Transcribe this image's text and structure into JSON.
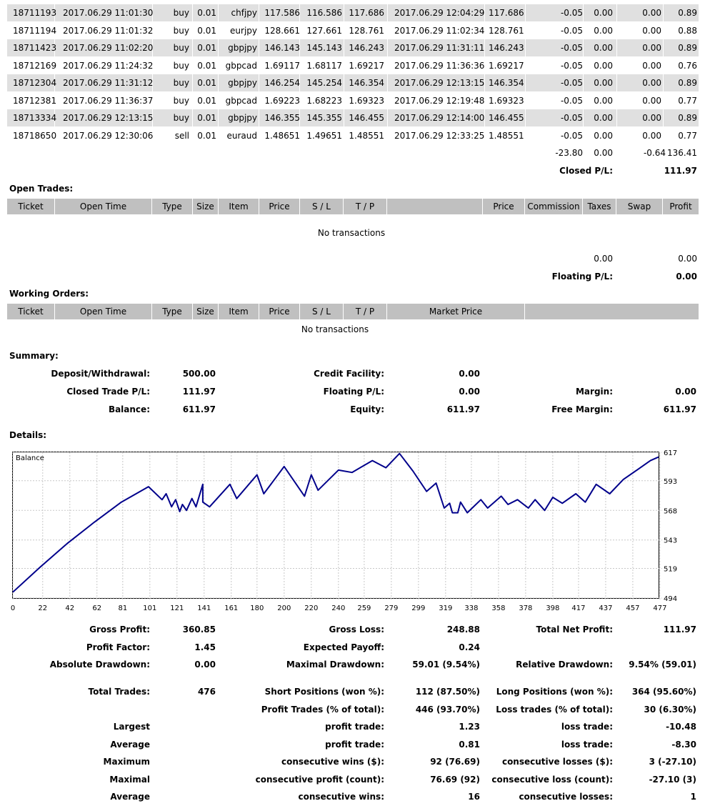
{
  "closed_trades": {
    "rows": [
      {
        "ticket": "18711193",
        "open_time": "2017.06.29 11:01:30",
        "type": "buy",
        "size": "0.01",
        "item": "chfjpy",
        "price": "117.586",
        "sl": "116.586",
        "tp": "117.686",
        "close_time": "2017.06.29 12:04:29",
        "close_price": "117.686",
        "commission": "-0.05",
        "taxes": "0.00",
        "swap": "0.00",
        "profit": "0.89"
      },
      {
        "ticket": "18711194",
        "open_time": "2017.06.29 11:01:32",
        "type": "buy",
        "size": "0.01",
        "item": "eurjpy",
        "price": "128.661",
        "sl": "127.661",
        "tp": "128.761",
        "close_time": "2017.06.29 11:02:34",
        "close_price": "128.761",
        "commission": "-0.05",
        "taxes": "0.00",
        "swap": "0.00",
        "profit": "0.88"
      },
      {
        "ticket": "18711423",
        "open_time": "2017.06.29 11:02:20",
        "type": "buy",
        "size": "0.01",
        "item": "gbpjpy",
        "price": "146.143",
        "sl": "145.143",
        "tp": "146.243",
        "close_time": "2017.06.29 11:31:11",
        "close_price": "146.243",
        "commission": "-0.05",
        "taxes": "0.00",
        "swap": "0.00",
        "profit": "0.89"
      },
      {
        "ticket": "18712169",
        "open_time": "2017.06.29 11:24:32",
        "type": "buy",
        "size": "0.01",
        "item": "gbpcad",
        "price": "1.69117",
        "sl": "1.68117",
        "tp": "1.69217",
        "close_time": "2017.06.29 11:36:36",
        "close_price": "1.69217",
        "commission": "-0.05",
        "taxes": "0.00",
        "swap": "0.00",
        "profit": "0.76"
      },
      {
        "ticket": "18712304",
        "open_time": "2017.06.29 11:31:12",
        "type": "buy",
        "size": "0.01",
        "item": "gbpjpy",
        "price": "146.254",
        "sl": "145.254",
        "tp": "146.354",
        "close_time": "2017.06.29 12:13:15",
        "close_price": "146.354",
        "commission": "-0.05",
        "taxes": "0.00",
        "swap": "0.00",
        "profit": "0.89"
      },
      {
        "ticket": "18712381",
        "open_time": "2017.06.29 11:36:37",
        "type": "buy",
        "size": "0.01",
        "item": "gbpcad",
        "price": "1.69223",
        "sl": "1.68223",
        "tp": "1.69323",
        "close_time": "2017.06.29 12:19:48",
        "close_price": "1.69323",
        "commission": "-0.05",
        "taxes": "0.00",
        "swap": "0.00",
        "profit": "0.77"
      },
      {
        "ticket": "18713334",
        "open_time": "2017.06.29 12:13:15",
        "type": "buy",
        "size": "0.01",
        "item": "gbpjpy",
        "price": "146.355",
        "sl": "145.355",
        "tp": "146.455",
        "close_time": "2017.06.29 12:14:00",
        "close_price": "146.455",
        "commission": "-0.05",
        "taxes": "0.00",
        "swap": "0.00",
        "profit": "0.89"
      },
      {
        "ticket": "18718650",
        "open_time": "2017.06.29 12:30:06",
        "type": "sell",
        "size": "0.01",
        "item": "euraud",
        "price": "1.48651",
        "sl": "1.49651",
        "tp": "1.48551",
        "close_time": "2017.06.29 12:33:25",
        "close_price": "1.48551",
        "commission": "-0.05",
        "taxes": "0.00",
        "swap": "0.00",
        "profit": "0.77"
      }
    ],
    "totals": {
      "commission": "-23.80",
      "taxes": "0.00",
      "swap": "-0.64",
      "profit": "136.41"
    },
    "pl_label": "Closed P/L:",
    "pl_value": "111.97"
  },
  "open_trades": {
    "title": "Open Trades:",
    "headers": {
      "ticket": "Ticket",
      "open_time": "Open Time",
      "type": "Type",
      "size": "Size",
      "item": "Item",
      "price": "Price",
      "sl": "S / L",
      "tp": "T / P",
      "price2": "Price",
      "commission": "Commission",
      "taxes": "Taxes",
      "swap": "Swap",
      "profit": "Profit"
    },
    "empty": "No transactions",
    "total_swap": "0.00",
    "total_profit": "0.00",
    "pl_label": "Floating P/L:",
    "pl_value": "0.00"
  },
  "working_orders": {
    "title": "Working Orders:",
    "headers": {
      "ticket": "Ticket",
      "open_time": "Open Time",
      "type": "Type",
      "size": "Size",
      "item": "Item",
      "price": "Price",
      "sl": "S / L",
      "tp": "T / P",
      "market_price": "Market Price"
    },
    "empty": "No transactions"
  },
  "summary": {
    "title": "Summary:",
    "deposit_label": "Deposit/Withdrawal:",
    "deposit": "500.00",
    "credit_label": "Credit Facility:",
    "credit": "0.00",
    "closed_pl_label": "Closed Trade P/L:",
    "closed_pl": "111.97",
    "floating_pl_label": "Floating P/L:",
    "floating_pl": "0.00",
    "margin_label": "Margin:",
    "margin": "0.00",
    "balance_label": "Balance:",
    "balance": "611.97",
    "equity_label": "Equity:",
    "equity": "611.97",
    "free_margin_label": "Free Margin:",
    "free_margin": "611.97"
  },
  "details": {
    "title": "Details:"
  },
  "chart_data": {
    "type": "line",
    "title": "Balance",
    "line_color": "#00008b",
    "x_ticks": [
      "0",
      "22",
      "42",
      "62",
      "81",
      "101",
      "121",
      "141",
      "161",
      "180",
      "200",
      "220",
      "240",
      "259",
      "279",
      "299",
      "319",
      "338",
      "358",
      "378",
      "398",
      "417",
      "437",
      "457",
      "477"
    ],
    "y_ticks": [
      "617",
      "593",
      "568",
      "543",
      "519",
      "494"
    ],
    "ylim": [
      494,
      617
    ],
    "xlim": [
      0,
      476
    ],
    "x": [
      0,
      20,
      40,
      60,
      80,
      100,
      110,
      113,
      117,
      120,
      123,
      125,
      128,
      132,
      135,
      140,
      140,
      145,
      160,
      165,
      180,
      185,
      200,
      215,
      220,
      225,
      240,
      250,
      265,
      275,
      285,
      295,
      305,
      312,
      318,
      322,
      324,
      328,
      330,
      335,
      345,
      350,
      360,
      365,
      372,
      380,
      385,
      392,
      398,
      405,
      415,
      422,
      430,
      440,
      450,
      460,
      470,
      476
    ],
    "y": [
      499,
      520,
      540,
      558,
      575,
      588,
      577,
      582,
      571,
      577,
      567,
      573,
      568,
      578,
      571,
      590,
      575,
      571,
      590,
      578,
      598,
      582,
      605,
      580,
      598,
      585,
      602,
      600,
      610,
      604,
      616,
      601,
      584,
      591,
      570,
      574,
      566,
      566,
      575,
      566,
      577,
      570,
      580,
      573,
      577,
      570,
      577,
      568,
      579,
      574,
      582,
      575,
      590,
      582,
      594,
      602,
      610,
      613
    ]
  },
  "stats": {
    "gross_profit_label": "Gross Profit:",
    "gross_profit": "360.85",
    "gross_loss_label": "Gross Loss:",
    "gross_loss": "248.88",
    "total_net_profit_label": "Total Net Profit:",
    "total_net_profit": "111.97",
    "profit_factor_label": "Profit Factor:",
    "profit_factor": "1.45",
    "expected_payoff_label": "Expected Payoff:",
    "expected_payoff": "0.24",
    "absolute_drawdown_label": "Absolute Drawdown:",
    "absolute_drawdown": "0.00",
    "maximal_drawdown_label": "Maximal Drawdown:",
    "maximal_drawdown": "59.01 (9.54%)",
    "relative_drawdown_label": "Relative Drawdown:",
    "relative_drawdown": "9.54% (59.01)",
    "total_trades_label": "Total Trades:",
    "total_trades": "476",
    "short_positions_label": "Short Positions (won %):",
    "short_positions": "112 (87.50%)",
    "long_positions_label": "Long Positions (won %):",
    "long_positions": "364 (95.60%)",
    "profit_trades_label": "Profit Trades (% of total):",
    "profit_trades": "446 (93.70%)",
    "loss_trades_label": "Loss trades (% of total):",
    "loss_trades": "30 (6.30%)",
    "largest_label": "Largest",
    "largest_profit_label": "profit trade:",
    "largest_profit": "1.23",
    "largest_loss_label": "loss trade:",
    "largest_loss": "-10.48",
    "average_label": "Average",
    "average_profit_label": "profit trade:",
    "average_profit": "0.81",
    "average_loss_label": "loss trade:",
    "average_loss": "-8.30",
    "maximum_label": "Maximum",
    "max_consec_wins_label": "consecutive wins ($):",
    "max_consec_wins": "92 (76.69)",
    "max_consec_losses_label": "consecutive losses ($):",
    "max_consec_losses": "3 (-27.10)",
    "maximal_label": "Maximal",
    "maximal_consec_profit_label": "consecutive profit (count):",
    "maximal_consec_profit": "76.69 (92)",
    "maximal_consec_loss_label": "consecutive loss (count):",
    "maximal_consec_loss": "-27.10 (3)",
    "average2_label": "Average",
    "avg_consec_wins_label": "consecutive wins:",
    "avg_consec_wins": "16",
    "avg_consec_losses_label": "consecutive losses:",
    "avg_consec_losses": "1"
  }
}
